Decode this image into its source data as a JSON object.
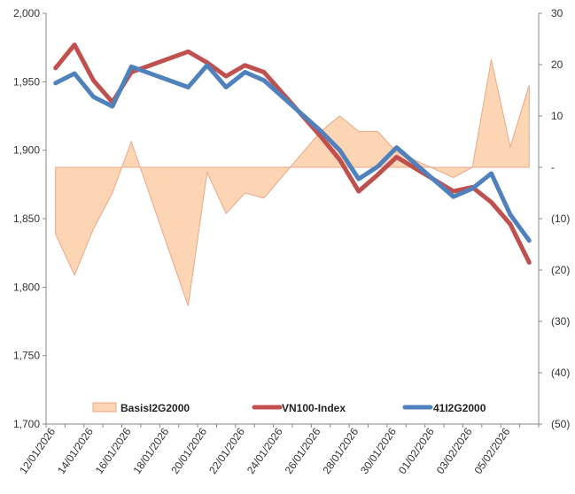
{
  "chart_data": {
    "type": "line",
    "title": "",
    "xlabel": "",
    "ylabel": "",
    "ylim": [
      1700,
      2000
    ],
    "y_ticks": [
      "1,700",
      "1,750",
      "1,800",
      "1,850",
      "1,900",
      "1,950",
      "2,000"
    ],
    "y2lim": [
      -50,
      30
    ],
    "y2_ticks": [
      "(50)",
      "(40)",
      "(30)",
      "(20)",
      "(10)",
      "-",
      "10",
      "20",
      "30"
    ],
    "x": [
      "12/01/2026",
      "13/01/2026",
      "14/01/2026",
      "15/01/2026",
      "16/01/2026",
      "19/01/2026",
      "20/01/2026",
      "21/01/2026",
      "22/01/2026",
      "23/01/2026",
      "26/01/2026",
      "27/01/2026",
      "28/01/2026",
      "29/01/2026",
      "30/01/2026",
      "02/02/2026",
      "03/02/2026",
      "04/02/2026",
      "05/02/2026",
      "06/02/2026"
    ],
    "x_positions": [
      0,
      1,
      2,
      3,
      4,
      7,
      8,
      9,
      10,
      11,
      14,
      15,
      16,
      17,
      18,
      21,
      22,
      23,
      24,
      25
    ],
    "x_tick_labels": [
      "12/01/2026",
      "14/01/2026",
      "16/01/2026",
      "18/01/2026",
      "20/01/2026",
      "22/01/2026",
      "24/01/2026",
      "26/01/2026",
      "28/01/2026",
      "30/01/2026",
      "01/02/2026",
      "03/02/2026",
      "05/02/2026"
    ],
    "x_tick_positions": [
      0,
      2,
      4,
      6,
      8,
      10,
      12,
      14,
      16,
      18,
      20,
      22,
      24
    ],
    "series": [
      {
        "name": "BasisI2G2000",
        "kind": "area",
        "axis": "right",
        "color": "#fcd5b5",
        "edge_color": "#e8a888",
        "values": [
          -13,
          -21,
          -12,
          -5,
          5,
          -27,
          -1,
          -9,
          -5,
          -6,
          7,
          10,
          7,
          7,
          3,
          -2,
          0,
          21,
          4,
          16
        ]
      },
      {
        "name": "VN100-Index",
        "kind": "line",
        "axis": "left",
        "color": "#c0504d",
        "values": [
          1960,
          1977,
          1951,
          1935,
          1957,
          1972,
          1964,
          1954,
          1962,
          1957,
          1910,
          1893,
          1870,
          1882,
          1895,
          1870,
          1873,
          1862,
          1846,
          1818
        ]
      },
      {
        "name": "41I2G2000",
        "kind": "line",
        "axis": "left",
        "color": "#4f81bd",
        "values": [
          1949,
          1956,
          1939,
          1932,
          1961,
          1946,
          1962,
          1946,
          1957,
          1951,
          1914,
          1900,
          1879,
          1888,
          1902,
          1866,
          1872,
          1883,
          1853,
          1834
        ]
      }
    ],
    "grid": false,
    "legend": "bottom"
  }
}
